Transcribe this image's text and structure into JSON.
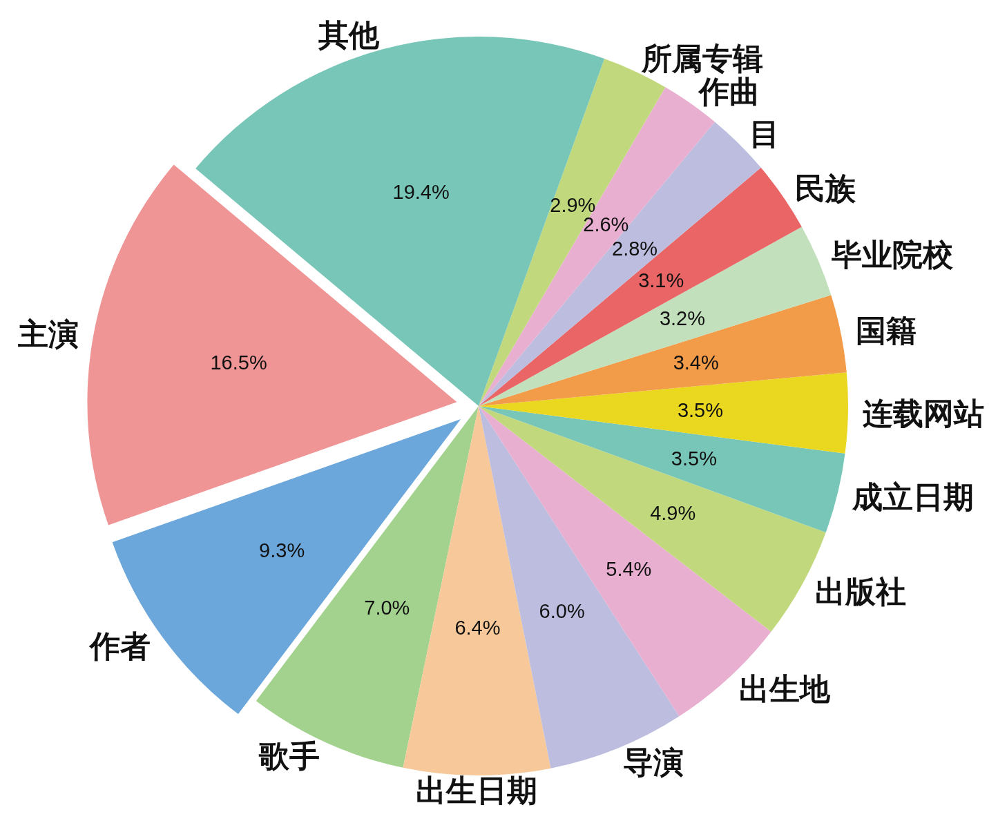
{
  "chart_data": {
    "type": "pie",
    "categories": [
      "主演",
      "作者",
      "歌手",
      "出生日期",
      "导演",
      "出生地",
      "出版社",
      "成立日期",
      "连载网站",
      "国籍",
      "毕业院校",
      "民族",
      "目",
      "作曲",
      "所属专辑",
      "其他"
    ],
    "values": [
      16.5,
      9.3,
      7.0,
      6.4,
      6.0,
      5.4,
      4.9,
      3.5,
      3.5,
      3.4,
      3.2,
      3.1,
      2.8,
      2.6,
      2.9,
      19.4
    ],
    "value_labels": [
      "16.5%",
      "9.3%",
      "7.0%",
      "6.4%",
      "6.0%",
      "5.4%",
      "4.9%",
      "3.5%",
      "3.5%",
      "3.4%",
      "3.2%",
      "3.1%",
      "2.8%",
      "2.6%",
      "2.9%",
      "19.4%"
    ],
    "colors": [
      "#f09595",
      "#6ca7dc",
      "#a2d28e",
      "#f7c89a",
      "#bcbddf",
      "#e8afd0",
      "#c1d97c",
      "#78c6b7",
      "#e9d720",
      "#f29b48",
      "#c1e0bb",
      "#ea6565",
      "#bcbddf",
      "#e8afd0",
      "#c1d97c",
      "#78c6b7"
    ]
  }
}
